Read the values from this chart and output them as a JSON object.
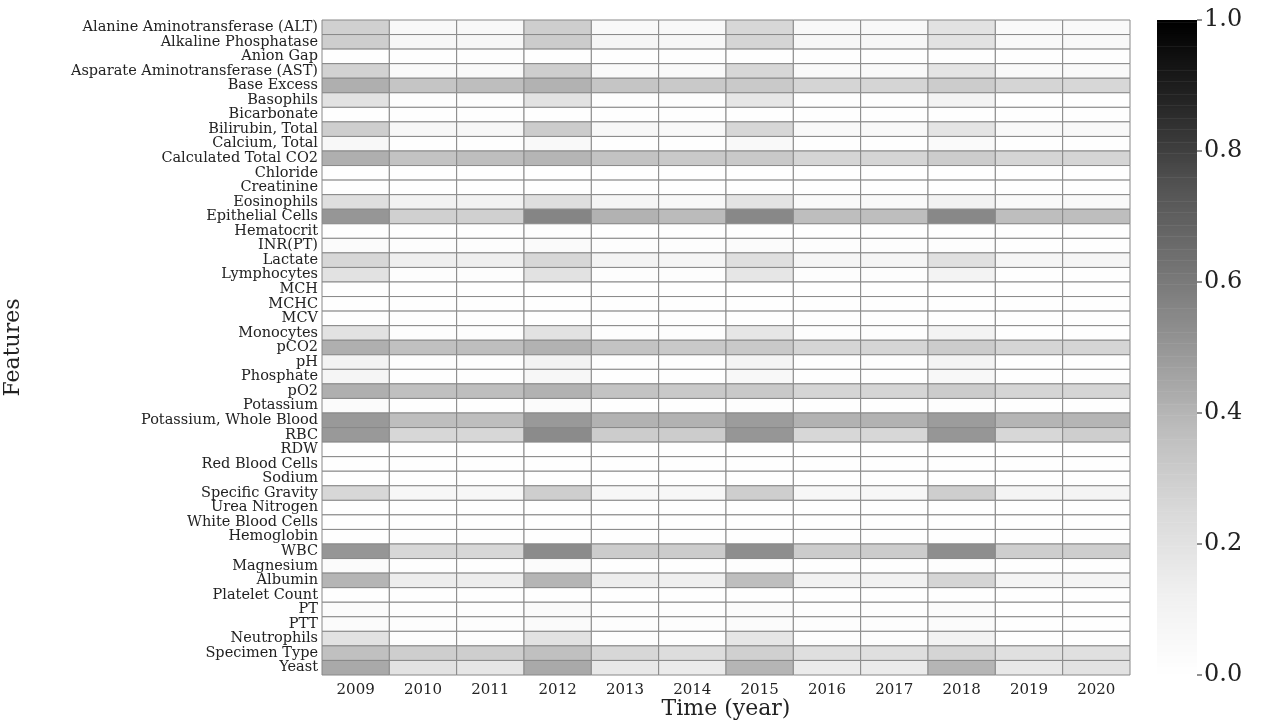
{
  "chart_data": {
    "type": "heatmap",
    "xlabel": "Time (year)",
    "ylabel": "Features",
    "categories": [
      "2009",
      "2010",
      "2011",
      "2012",
      "2013",
      "2014",
      "2015",
      "2016",
      "2017",
      "2018",
      "2019",
      "2020"
    ],
    "y_categories": [
      "Alanine Aminotransferase (ALT)",
      "Alkaline Phosphatase",
      "Anion Gap",
      "Asparate Aminotransferase (AST)",
      "Base Excess",
      "Basophils",
      "Bicarbonate",
      "Bilirubin, Total",
      "Calcium, Total",
      "Calculated Total CO2",
      "Chloride",
      "Creatinine",
      "Eosinophils",
      "Epithelial Cells",
      "Hematocrit",
      "INR(PT)",
      "Lactate",
      "Lymphocytes",
      "MCH",
      "MCHC",
      "MCV",
      "Monocytes",
      "pCO2",
      "pH",
      "Phosphate",
      "pO2",
      "Potassium",
      "Potassium, Whole Blood",
      "RBC",
      "RDW",
      "Red Blood Cells",
      "Sodium",
      "Specific Gravity",
      "Urea Nitrogen",
      "White Blood Cells",
      "Hemoglobin",
      "WBC",
      "Magnesium",
      "Albumin",
      "Platelet Count",
      "PT",
      "PTT",
      "Neutrophils",
      "Specimen Type",
      "Yeast"
    ],
    "cells": [
      [
        0.29,
        0.06,
        0.06,
        0.3,
        0.06,
        0.06,
        0.26,
        0.06,
        0.06,
        0.2,
        0.05,
        0.05
      ],
      [
        0.3,
        0.07,
        0.07,
        0.31,
        0.08,
        0.07,
        0.27,
        0.07,
        0.07,
        0.2,
        0.06,
        0.06
      ],
      [
        0.01,
        0.01,
        0.01,
        0.01,
        0.01,
        0.01,
        0.01,
        0.01,
        0.01,
        0.01,
        0.01,
        0.01
      ],
      [
        0.28,
        0.05,
        0.05,
        0.3,
        0.05,
        0.05,
        0.26,
        0.05,
        0.05,
        0.19,
        0.05,
        0.05
      ],
      [
        0.42,
        0.34,
        0.37,
        0.41,
        0.34,
        0.32,
        0.32,
        0.27,
        0.27,
        0.31,
        0.27,
        0.26
      ],
      [
        0.2,
        0.02,
        0.02,
        0.2,
        0.02,
        0.02,
        0.18,
        0.02,
        0.02,
        0.1,
        0.01,
        0.01
      ],
      [
        0.01,
        0.01,
        0.01,
        0.01,
        0.01,
        0.01,
        0.01,
        0.01,
        0.01,
        0.01,
        0.01,
        0.01
      ],
      [
        0.3,
        0.07,
        0.07,
        0.31,
        0.07,
        0.06,
        0.26,
        0.06,
        0.06,
        0.19,
        0.06,
        0.06
      ],
      [
        0.06,
        0.01,
        0.01,
        0.05,
        0.01,
        0.01,
        0.05,
        0.01,
        0.01,
        0.04,
        0.01,
        0.01
      ],
      [
        0.42,
        0.35,
        0.37,
        0.4,
        0.35,
        0.32,
        0.32,
        0.27,
        0.27,
        0.31,
        0.27,
        0.27
      ],
      [
        0.01,
        0.01,
        0.01,
        0.01,
        0.01,
        0.01,
        0.01,
        0.01,
        0.01,
        0.01,
        0.01,
        0.01
      ],
      [
        0.01,
        0.01,
        0.01,
        0.01,
        0.01,
        0.01,
        0.01,
        0.01,
        0.01,
        0.01,
        0.01,
        0.01
      ],
      [
        0.22,
        0.11,
        0.11,
        0.22,
        0.08,
        0.06,
        0.19,
        0.05,
        0.05,
        0.11,
        0.05,
        0.05
      ],
      [
        0.5,
        0.29,
        0.29,
        0.56,
        0.41,
        0.38,
        0.55,
        0.37,
        0.37,
        0.55,
        0.37,
        0.37
      ],
      [
        0.01,
        0.01,
        0.01,
        0.02,
        0.01,
        0.01,
        0.01,
        0.01,
        0.01,
        0.01,
        0.01,
        0.01
      ],
      [
        0.03,
        0.02,
        0.02,
        0.04,
        0.02,
        0.02,
        0.03,
        0.02,
        0.02,
        0.02,
        0.01,
        0.01
      ],
      [
        0.26,
        0.13,
        0.13,
        0.26,
        0.1,
        0.08,
        0.22,
        0.08,
        0.08,
        0.21,
        0.08,
        0.08
      ],
      [
        0.2,
        0.02,
        0.02,
        0.2,
        0.02,
        0.02,
        0.18,
        0.02,
        0.02,
        0.1,
        0.01,
        0.01
      ],
      [
        0.01,
        0.01,
        0.01,
        0.01,
        0.01,
        0.01,
        0.01,
        0.01,
        0.01,
        0.01,
        0.01,
        0.01
      ],
      [
        0.01,
        0.01,
        0.01,
        0.01,
        0.01,
        0.01,
        0.01,
        0.01,
        0.01,
        0.01,
        0.01,
        0.01
      ],
      [
        0.01,
        0.01,
        0.01,
        0.01,
        0.01,
        0.01,
        0.01,
        0.01,
        0.01,
        0.01,
        0.01,
        0.01
      ],
      [
        0.2,
        0.02,
        0.02,
        0.2,
        0.02,
        0.02,
        0.18,
        0.02,
        0.02,
        0.1,
        0.01,
        0.01
      ],
      [
        0.42,
        0.36,
        0.37,
        0.41,
        0.35,
        0.32,
        0.32,
        0.27,
        0.27,
        0.31,
        0.27,
        0.27
      ],
      [
        0.1,
        0.02,
        0.02,
        0.1,
        0.02,
        0.02,
        0.09,
        0.02,
        0.02,
        0.09,
        0.01,
        0.01
      ],
      [
        0.08,
        0.01,
        0.01,
        0.07,
        0.01,
        0.01,
        0.06,
        0.01,
        0.01,
        0.06,
        0.01,
        0.01
      ],
      [
        0.42,
        0.36,
        0.37,
        0.41,
        0.35,
        0.32,
        0.32,
        0.27,
        0.27,
        0.31,
        0.27,
        0.27
      ],
      [
        0.03,
        0.01,
        0.01,
        0.03,
        0.01,
        0.01,
        0.02,
        0.01,
        0.01,
        0.02,
        0.01,
        0.01
      ],
      [
        0.49,
        0.37,
        0.37,
        0.49,
        0.41,
        0.41,
        0.48,
        0.41,
        0.41,
        0.48,
        0.4,
        0.4
      ],
      [
        0.49,
        0.26,
        0.26,
        0.54,
        0.31,
        0.31,
        0.5,
        0.26,
        0.26,
        0.5,
        0.26,
        0.3
      ],
      [
        0.01,
        0.01,
        0.01,
        0.01,
        0.01,
        0.01,
        0.01,
        0.01,
        0.01,
        0.01,
        0.01,
        0.01
      ],
      [
        0.01,
        0.01,
        0.01,
        0.01,
        0.01,
        0.01,
        0.01,
        0.01,
        0.01,
        0.01,
        0.01,
        0.01
      ],
      [
        0.01,
        0.01,
        0.01,
        0.01,
        0.01,
        0.01,
        0.01,
        0.01,
        0.01,
        0.01,
        0.01,
        0.01
      ],
      [
        0.26,
        0.07,
        0.07,
        0.3,
        0.07,
        0.07,
        0.3,
        0.07,
        0.07,
        0.3,
        0.09,
        0.09
      ],
      [
        0.01,
        0.01,
        0.01,
        0.01,
        0.01,
        0.01,
        0.01,
        0.01,
        0.01,
        0.01,
        0.01,
        0.01
      ],
      [
        0.01,
        0.01,
        0.01,
        0.01,
        0.01,
        0.01,
        0.01,
        0.01,
        0.01,
        0.01,
        0.01,
        0.01
      ],
      [
        0.01,
        0.01,
        0.01,
        0.01,
        0.01,
        0.01,
        0.01,
        0.01,
        0.01,
        0.01,
        0.01,
        0.01
      ],
      [
        0.5,
        0.26,
        0.26,
        0.54,
        0.31,
        0.31,
        0.53,
        0.31,
        0.31,
        0.53,
        0.3,
        0.3
      ],
      [
        0.03,
        0.01,
        0.01,
        0.03,
        0.01,
        0.01,
        0.02,
        0.01,
        0.01,
        0.02,
        0.01,
        0.01
      ],
      [
        0.4,
        0.14,
        0.14,
        0.4,
        0.14,
        0.13,
        0.37,
        0.12,
        0.12,
        0.27,
        0.09,
        0.09
      ],
      [
        0.01,
        0.01,
        0.01,
        0.01,
        0.01,
        0.01,
        0.01,
        0.01,
        0.01,
        0.01,
        0.01,
        0.01
      ],
      [
        0.03,
        0.02,
        0.02,
        0.04,
        0.02,
        0.02,
        0.03,
        0.02,
        0.02,
        0.03,
        0.01,
        0.01
      ],
      [
        0.03,
        0.02,
        0.02,
        0.04,
        0.02,
        0.02,
        0.03,
        0.02,
        0.02,
        0.03,
        0.01,
        0.01
      ],
      [
        0.2,
        0.02,
        0.02,
        0.2,
        0.02,
        0.02,
        0.18,
        0.02,
        0.02,
        0.1,
        0.01,
        0.01
      ],
      [
        0.36,
        0.3,
        0.3,
        0.36,
        0.26,
        0.23,
        0.29,
        0.22,
        0.22,
        0.27,
        0.21,
        0.21
      ],
      [
        0.44,
        0.2,
        0.18,
        0.44,
        0.17,
        0.15,
        0.4,
        0.15,
        0.15,
        0.4,
        0.17,
        0.2
      ]
    ],
    "clim": [
      0.0,
      1.0
    ],
    "cticks": [
      {
        "value": 0,
        "label": "0.0"
      },
      {
        "value": 0.2,
        "label": "0.2"
      },
      {
        "value": 0.4,
        "label": "0.4"
      },
      {
        "value": 0.6,
        "label": "0.6"
      },
      {
        "value": 0.8,
        "label": "0.8"
      },
      {
        "value": 1,
        "label": "1.0"
      }
    ]
  }
}
